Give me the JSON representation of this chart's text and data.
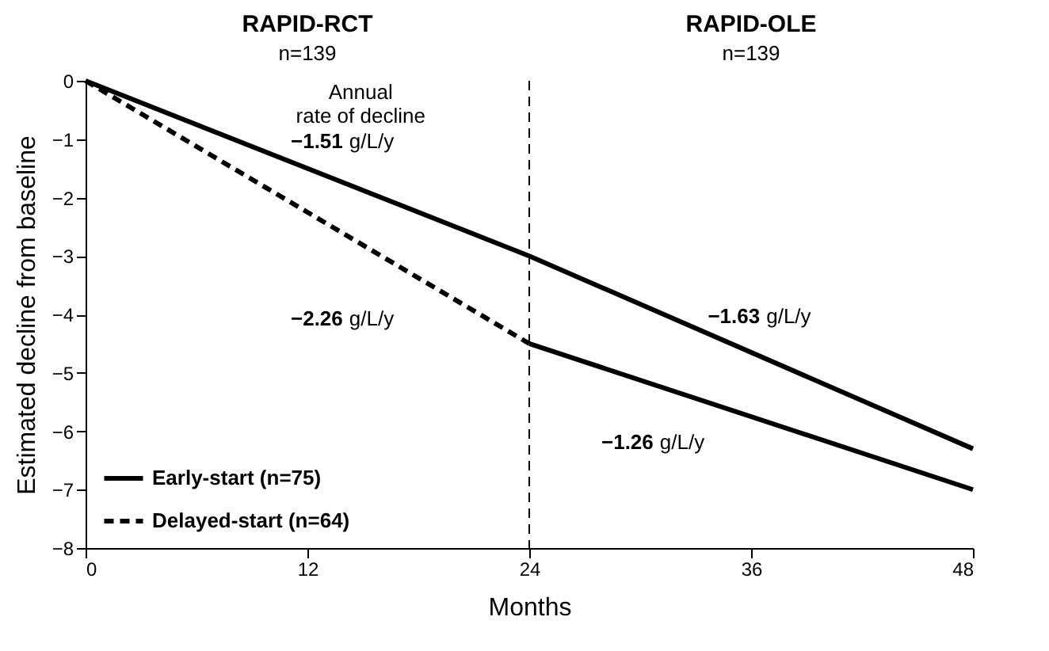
{
  "chart_data": {
    "type": "line",
    "xlabel": "Months",
    "ylabel": "Estimated decline from baseline",
    "x": [
      0,
      24,
      48
    ],
    "series": [
      {
        "name": "Early-start (n=75)",
        "color": "#000000",
        "line_style": "solid",
        "values": [
          0,
          -3.0,
          -6.3
        ]
      },
      {
        "name": "Delayed-start (n=64)",
        "color": "#000000",
        "line_style": "dashed",
        "values": [
          0,
          -4.5,
          null
        ]
      },
      {
        "color": "#000000",
        "line_style": "solid",
        "values": [
          null,
          -4.5,
          -7.0
        ]
      }
    ],
    "xlim": [
      0,
      48
    ],
    "xticks": [
      0,
      12,
      24,
      36,
      48
    ],
    "ylim": [
      -8,
      0
    ],
    "yticks": [
      -8,
      -7,
      -6,
      -5,
      -4,
      -3,
      -2,
      -1,
      0
    ],
    "grid": false,
    "legend": "bottom left",
    "marker": "none",
    "ref_lines": [
      {
        "axis": "x",
        "value": 24,
        "color": "#000000",
        "line_style": "dashed"
      }
    ],
    "annotations": [
      "RAPID-RCT",
      "n=139",
      "RAPID-OLE",
      "n=139",
      "Annual\nrate of decline",
      "−1.51 g/L/y",
      "−2.26 g/L/y",
      "−1.63 g/L/y",
      "−1.26 g/L/y"
    ]
  }
}
